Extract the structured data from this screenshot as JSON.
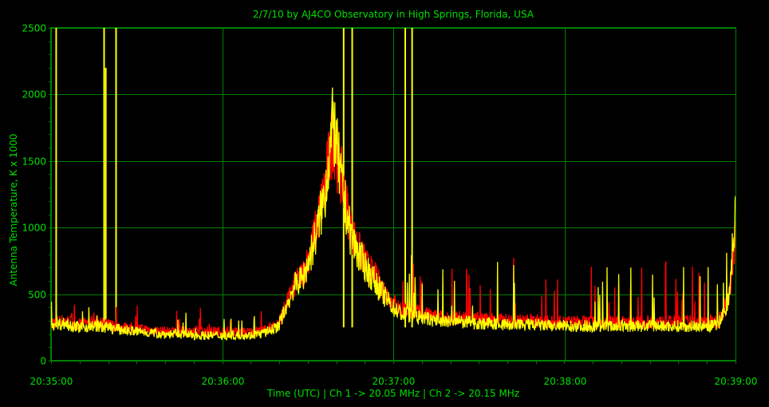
{
  "chart_data": {
    "type": "line",
    "title": "2/7/10  by  AJ4CO Observatory  in  High Springs, Florida, USA",
    "xlabel": "Time (UTC)  |  Ch 1 -> 20.05 MHz  |  Ch 2 -> 20.15 MHz",
    "ylabel": "Antenna Temperature, K x 1000",
    "x_range_minutes": [
      0,
      4
    ],
    "ylim": [
      0,
      2500
    ],
    "x_ticks": [
      {
        "label": "20:35:00",
        "t": 0
      },
      {
        "label": "20:36:00",
        "t": 1
      },
      {
        "label": "20:37:00",
        "t": 2
      },
      {
        "label": "20:38:00",
        "t": 3
      },
      {
        "label": "20:39:00",
        "t": 4
      }
    ],
    "y_ticks": [
      0,
      500,
      1000,
      1500,
      2000,
      2500
    ],
    "grid": true,
    "colors": {
      "background": "#000000",
      "grid": "#008000",
      "text": "#00e000",
      "ch1": "#ff0000",
      "ch2": "#ffff00"
    },
    "series": [
      {
        "name": "Ch 1 -> 20.05 MHz",
        "color": "#ff0000",
        "points": [
          [
            0,
            290
          ],
          [
            0.08,
            300
          ],
          [
            0.17,
            270
          ],
          [
            0.25,
            290
          ],
          [
            0.33,
            270
          ],
          [
            0.42,
            250
          ],
          [
            0.5,
            240
          ],
          [
            0.58,
            230
          ],
          [
            0.67,
            220
          ],
          [
            0.75,
            220
          ],
          [
            0.83,
            220
          ],
          [
            0.92,
            220
          ],
          [
            1.0,
            220
          ],
          [
            1.08,
            215
          ],
          [
            1.17,
            215
          ],
          [
            1.25,
            230
          ],
          [
            1.33,
            280
          ],
          [
            1.42,
            560
          ],
          [
            1.47,
            650
          ],
          [
            1.5,
            760
          ],
          [
            1.55,
            1000
          ],
          [
            1.6,
            1300
          ],
          [
            1.63,
            1560
          ],
          [
            1.65,
            1700
          ],
          [
            1.67,
            1540
          ],
          [
            1.7,
            1350
          ],
          [
            1.75,
            1000
          ],
          [
            1.8,
            830
          ],
          [
            1.85,
            710
          ],
          [
            1.9,
            620
          ],
          [
            1.95,
            520
          ],
          [
            2.0,
            440
          ],
          [
            2.05,
            380
          ],
          [
            2.1,
            370
          ],
          [
            2.17,
            350
          ],
          [
            2.25,
            330
          ],
          [
            2.33,
            320
          ],
          [
            2.42,
            320
          ],
          [
            2.5,
            310
          ],
          [
            2.58,
            310
          ],
          [
            2.67,
            300
          ],
          [
            2.75,
            300
          ],
          [
            2.83,
            300
          ],
          [
            2.92,
            290
          ],
          [
            3.0,
            290
          ],
          [
            3.08,
            290
          ],
          [
            3.17,
            290
          ],
          [
            3.25,
            290
          ],
          [
            3.33,
            290
          ],
          [
            3.42,
            290
          ],
          [
            3.5,
            290
          ],
          [
            3.58,
            290
          ],
          [
            3.67,
            290
          ],
          [
            3.75,
            290
          ],
          [
            3.83,
            290
          ],
          [
            3.9,
            300
          ],
          [
            3.96,
            450
          ],
          [
            3.98,
            700
          ],
          [
            4.0,
            950
          ]
        ]
      },
      {
        "name": "Ch 2 -> 20.15 MHz",
        "color": "#ffff00",
        "points": [
          [
            0,
            270
          ],
          [
            0.08,
            280
          ],
          [
            0.17,
            250
          ],
          [
            0.25,
            260
          ],
          [
            0.33,
            250
          ],
          [
            0.42,
            230
          ],
          [
            0.5,
            220
          ],
          [
            0.58,
            210
          ],
          [
            0.67,
            200
          ],
          [
            0.75,
            200
          ],
          [
            0.83,
            190
          ],
          [
            0.92,
            190
          ],
          [
            1.0,
            190
          ],
          [
            1.08,
            190
          ],
          [
            1.17,
            190
          ],
          [
            1.25,
            210
          ],
          [
            1.33,
            260
          ],
          [
            1.42,
            560
          ],
          [
            1.47,
            620
          ],
          [
            1.5,
            720
          ],
          [
            1.55,
            950
          ],
          [
            1.6,
            1250
          ],
          [
            1.63,
            1600
          ],
          [
            1.65,
            1800
          ],
          [
            1.67,
            1580
          ],
          [
            1.7,
            1300
          ],
          [
            1.75,
            950
          ],
          [
            1.8,
            790
          ],
          [
            1.85,
            680
          ],
          [
            1.9,
            580
          ],
          [
            1.95,
            480
          ],
          [
            2.0,
            400
          ],
          [
            2.05,
            350
          ],
          [
            2.1,
            340
          ],
          [
            2.17,
            320
          ],
          [
            2.25,
            300
          ],
          [
            2.33,
            290
          ],
          [
            2.42,
            290
          ],
          [
            2.5,
            280
          ],
          [
            2.58,
            280
          ],
          [
            2.67,
            270
          ],
          [
            2.75,
            270
          ],
          [
            2.83,
            270
          ],
          [
            2.92,
            260
          ],
          [
            3.0,
            260
          ],
          [
            3.08,
            260
          ],
          [
            3.17,
            260
          ],
          [
            3.25,
            260
          ],
          [
            3.33,
            260
          ],
          [
            3.42,
            260
          ],
          [
            3.5,
            260
          ],
          [
            3.58,
            260
          ],
          [
            3.67,
            260
          ],
          [
            3.75,
            260
          ],
          [
            3.83,
            260
          ],
          [
            3.9,
            270
          ],
          [
            3.96,
            450
          ],
          [
            3.98,
            800
          ],
          [
            4.0,
            1150
          ]
        ]
      }
    ],
    "spikes": [
      {
        "t": 0.03,
        "value": 2500,
        "color": "#ffff00"
      },
      {
        "t": 0.31,
        "value": 2500,
        "color": "#ffff00"
      },
      {
        "t": 0.32,
        "value": 2200,
        "color": "#ffff00"
      },
      {
        "t": 0.38,
        "value": 2500,
        "color": "#ffff00"
      },
      {
        "t": 1.71,
        "value": 2500,
        "color": "#ffff00"
      },
      {
        "t": 1.76,
        "value": 2500,
        "color": "#ffff00"
      },
      {
        "t": 2.07,
        "value": 2500,
        "color": "#ffff00"
      },
      {
        "t": 2.11,
        "value": 2500,
        "color": "#ffff00"
      }
    ]
  }
}
